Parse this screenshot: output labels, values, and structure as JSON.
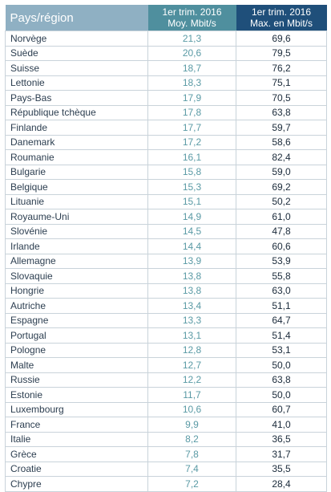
{
  "header": {
    "country_label": "Pays/région",
    "avg_line1": "1er trim. 2016",
    "avg_line2": "Moy. Mbit/s",
    "max_line1": "1er trim. 2016",
    "max_line2": "Max. en Mbit/s"
  },
  "rows": [
    {
      "country": "Norvège",
      "avg": "21,3",
      "max": "69,6"
    },
    {
      "country": "Suède",
      "avg": "20,6",
      "max": "79,5"
    },
    {
      "country": "Suisse",
      "avg": "18,7",
      "max": "76,2"
    },
    {
      "country": "Lettonie",
      "avg": "18,3",
      "max": "75,1"
    },
    {
      "country": "Pays-Bas",
      "avg": "17,9",
      "max": "70,5"
    },
    {
      "country": "République tchèque",
      "avg": "17,8",
      "max": "63,8"
    },
    {
      "country": "Finlande",
      "avg": "17,7",
      "max": "59,7"
    },
    {
      "country": "Danemark",
      "avg": "17,2",
      "max": "58,6"
    },
    {
      "country": "Roumanie",
      "avg": "16,1",
      "max": "82,4"
    },
    {
      "country": "Bulgarie",
      "avg": "15,8",
      "max": "59,0"
    },
    {
      "country": "Belgique",
      "avg": "15,3",
      "max": "69,2"
    },
    {
      "country": "Lituanie",
      "avg": "15,1",
      "max": "50,2"
    },
    {
      "country": "Royaume-Uni",
      "avg": "14,9",
      "max": "61,0"
    },
    {
      "country": "Slovénie",
      "avg": "14,5",
      "max": "47,8"
    },
    {
      "country": "Irlande",
      "avg": "14,4",
      "max": "60,6"
    },
    {
      "country": "Allemagne",
      "avg": "13,9",
      "max": "53,9"
    },
    {
      "country": "Slovaquie",
      "avg": "13,8",
      "max": "55,8"
    },
    {
      "country": "Hongrie",
      "avg": "13,8",
      "max": "63,0"
    },
    {
      "country": "Autriche",
      "avg": "13,4",
      "max": "51,1"
    },
    {
      "country": "Espagne",
      "avg": "13,3",
      "max": "64,7"
    },
    {
      "country": "Portugal",
      "avg": "13,1",
      "max": "51,4"
    },
    {
      "country": "Pologne",
      "avg": "12,8",
      "max": "53,1"
    },
    {
      "country": "Malte",
      "avg": "12,7",
      "max": "50,0"
    },
    {
      "country": "Russie",
      "avg": "12,2",
      "max": "63,8"
    },
    {
      "country": "Estonie",
      "avg": "11,7",
      "max": "50,0"
    },
    {
      "country": "Luxembourg",
      "avg": "10,6",
      "max": "60,7"
    },
    {
      "country": "France",
      "avg": "9,9",
      "max": "41,0"
    },
    {
      "country": "Italie",
      "avg": "8,2",
      "max": "36,5"
    },
    {
      "country": "Grèce",
      "avg": "7,8",
      "max": "31,7"
    },
    {
      "country": "Croatie",
      "avg": "7,4",
      "max": "35,5"
    },
    {
      "country": "Chypre",
      "avg": "7,2",
      "max": "28,4"
    }
  ]
}
